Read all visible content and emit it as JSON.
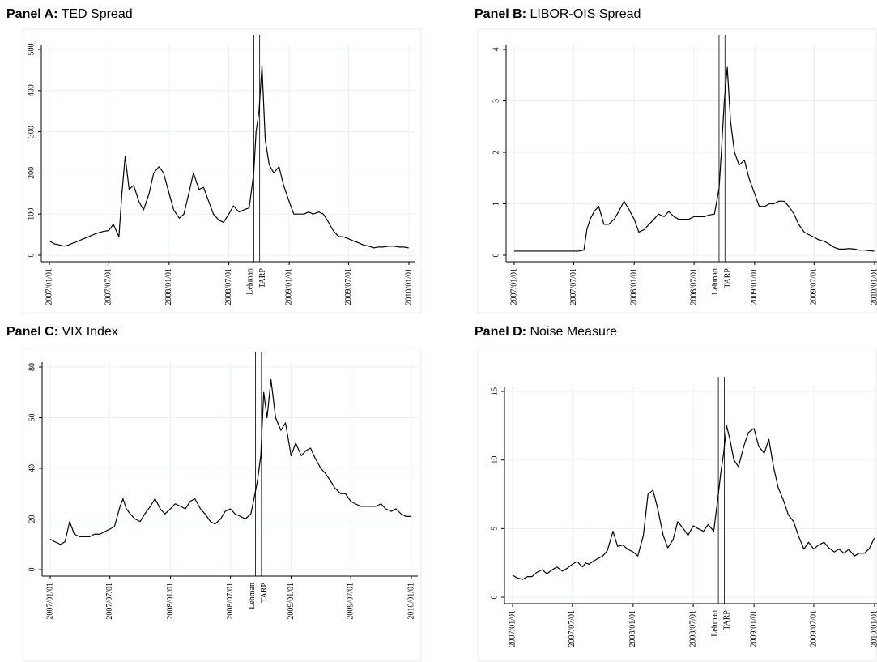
{
  "chart_data": [
    {
      "type": "line",
      "panel": "Panel A:",
      "title": "TED Spread",
      "color": "#000000",
      "grid": true,
      "xlim": [
        "2007/01/01",
        "2010/01/01"
      ],
      "ylim": [
        0,
        500
      ],
      "yticks": [
        0,
        100,
        200,
        300,
        400,
        500
      ],
      "xticks": [
        "2007/01/01",
        "2007/07/01",
        "2008/01/01",
        "2008/07/01",
        "2009/01/01",
        "2009/07/01",
        "2010/01/01"
      ],
      "vlines": [
        {
          "x": "2008/09/15",
          "label": "Lehman"
        },
        {
          "x": "2008/10/03",
          "label": "TARP"
        }
      ],
      "x": [
        "2007/01/01",
        "2007/01/15",
        "2007/02/01",
        "2007/02/15",
        "2007/03/01",
        "2007/03/15",
        "2007/04/01",
        "2007/04/15",
        "2007/05/01",
        "2007/05/15",
        "2007/06/01",
        "2007/06/15",
        "2007/07/01",
        "2007/07/15",
        "2007/08/01",
        "2007/08/10",
        "2007/08/20",
        "2007/09/01",
        "2007/09/15",
        "2007/10/01",
        "2007/10/15",
        "2007/11/01",
        "2007/11/15",
        "2007/12/01",
        "2007/12/15",
        "2008/01/01",
        "2008/01/15",
        "2008/02/01",
        "2008/02/15",
        "2008/03/01",
        "2008/03/15",
        "2008/04/01",
        "2008/04/15",
        "2008/05/01",
        "2008/05/15",
        "2008/06/01",
        "2008/06/15",
        "2008/07/01",
        "2008/07/15",
        "2008/08/01",
        "2008/08/15",
        "2008/09/01",
        "2008/09/15",
        "2008/09/22",
        "2008/10/01",
        "2008/10/10",
        "2008/10/20",
        "2008/11/01",
        "2008/11/15",
        "2008/12/01",
        "2008/12/15",
        "2009/01/01",
        "2009/01/15",
        "2009/02/01",
        "2009/02/15",
        "2009/03/01",
        "2009/03/15",
        "2009/04/01",
        "2009/04/15",
        "2009/05/01",
        "2009/05/15",
        "2009/06/01",
        "2009/06/15",
        "2009/07/01",
        "2009/07/15",
        "2009/08/01",
        "2009/08/15",
        "2009/09/01",
        "2009/09/15",
        "2009/10/01",
        "2009/10/15",
        "2009/11/01",
        "2009/11/15",
        "2009/12/01",
        "2009/12/15",
        "2009/12/31"
      ],
      "values": [
        35,
        28,
        25,
        22,
        25,
        30,
        35,
        40,
        45,
        50,
        55,
        58,
        60,
        75,
        45,
        150,
        240,
        160,
        170,
        130,
        110,
        150,
        200,
        215,
        200,
        150,
        110,
        90,
        100,
        150,
        200,
        160,
        165,
        130,
        100,
        85,
        80,
        100,
        120,
        105,
        110,
        115,
        200,
        300,
        350,
        460,
        280,
        220,
        200,
        215,
        170,
        130,
        100,
        100,
        100,
        105,
        100,
        105,
        100,
        80,
        60,
        45,
        45,
        40,
        35,
        30,
        25,
        22,
        18,
        20,
        20,
        22,
        22,
        20,
        20,
        18
      ]
    },
    {
      "type": "line",
      "panel": "Panel B:",
      "title": "LIBOR-OIS Spread",
      "color": "#000000",
      "grid": true,
      "xlim": [
        "2007/01/01",
        "2010/01/01"
      ],
      "ylim": [
        0,
        4
      ],
      "yticks": [
        0,
        1,
        2,
        3,
        4
      ],
      "xticks": [
        "2007/01/01",
        "2007/07/01",
        "2008/01/01",
        "2008/07/01",
        "2009/01/01",
        "2009/07/01",
        "2010/01/01"
      ],
      "vlines": [
        {
          "x": "2008/09/15",
          "label": "Lehman"
        },
        {
          "x": "2008/10/03",
          "label": "TARP"
        }
      ],
      "x": [
        "2007/01/01",
        "2007/01/15",
        "2007/02/01",
        "2007/02/15",
        "2007/03/01",
        "2007/03/15",
        "2007/04/01",
        "2007/04/15",
        "2007/05/01",
        "2007/05/15",
        "2007/06/01",
        "2007/06/15",
        "2007/07/01",
        "2007/07/15",
        "2007/08/01",
        "2007/08/10",
        "2007/08/20",
        "2007/09/01",
        "2007/09/15",
        "2007/10/01",
        "2007/10/15",
        "2007/11/01",
        "2007/11/15",
        "2007/12/01",
        "2007/12/15",
        "2008/01/01",
        "2008/01/15",
        "2008/02/01",
        "2008/02/15",
        "2008/03/01",
        "2008/03/15",
        "2008/04/01",
        "2008/04/15",
        "2008/05/01",
        "2008/05/15",
        "2008/06/01",
        "2008/06/15",
        "2008/07/01",
        "2008/07/15",
        "2008/08/01",
        "2008/08/15",
        "2008/09/01",
        "2008/09/15",
        "2008/09/22",
        "2008/10/01",
        "2008/10/10",
        "2008/10/20",
        "2008/11/01",
        "2008/11/15",
        "2008/12/01",
        "2008/12/15",
        "2009/01/01",
        "2009/01/15",
        "2009/02/01",
        "2009/02/15",
        "2009/03/01",
        "2009/03/15",
        "2009/04/01",
        "2009/04/15",
        "2009/05/01",
        "2009/05/15",
        "2009/06/01",
        "2009/06/15",
        "2009/07/01",
        "2009/07/15",
        "2009/08/01",
        "2009/08/15",
        "2009/09/01",
        "2009/09/15",
        "2009/10/01",
        "2009/10/15",
        "2009/11/01",
        "2009/11/15",
        "2009/12/01",
        "2009/12/15",
        "2009/12/31"
      ],
      "values": [
        0.08,
        0.08,
        0.08,
        0.08,
        0.08,
        0.08,
        0.08,
        0.08,
        0.08,
        0.08,
        0.08,
        0.08,
        0.08,
        0.08,
        0.1,
        0.5,
        0.7,
        0.85,
        0.95,
        0.6,
        0.6,
        0.7,
        0.85,
        1.05,
        0.9,
        0.7,
        0.45,
        0.5,
        0.6,
        0.7,
        0.8,
        0.75,
        0.85,
        0.75,
        0.7,
        0.7,
        0.7,
        0.75,
        0.75,
        0.75,
        0.78,
        0.8,
        1.3,
        2.0,
        3.0,
        3.65,
        2.6,
        2.0,
        1.75,
        1.85,
        1.5,
        1.2,
        0.95,
        0.95,
        1.0,
        1.0,
        1.05,
        1.05,
        0.95,
        0.8,
        0.6,
        0.45,
        0.4,
        0.35,
        0.3,
        0.27,
        0.22,
        0.15,
        0.12,
        0.12,
        0.13,
        0.12,
        0.1,
        0.1,
        0.09,
        0.08
      ]
    },
    {
      "type": "line",
      "panel": "Panel C:",
      "title": "VIX Index",
      "color": "#000000",
      "grid": true,
      "xlim": [
        "2007/01/01",
        "2010/01/01"
      ],
      "ylim": [
        0,
        80
      ],
      "yticks": [
        0,
        20,
        40,
        60,
        80
      ],
      "xticks": [
        "2007/01/01",
        "2007/07/01",
        "2008/01/01",
        "2008/07/01",
        "2009/01/01",
        "2009/07/01",
        "2010/01/01"
      ],
      "vlines": [
        {
          "x": "2008/09/15",
          "label": "Lehman"
        },
        {
          "x": "2008/10/03",
          "label": "TARP"
        }
      ],
      "x": [
        "2007/01/01",
        "2007/01/15",
        "2007/02/01",
        "2007/02/15",
        "2007/03/01",
        "2007/03/15",
        "2007/04/01",
        "2007/04/15",
        "2007/05/01",
        "2007/05/15",
        "2007/06/01",
        "2007/06/15",
        "2007/07/01",
        "2007/07/15",
        "2007/08/01",
        "2007/08/10",
        "2007/08/20",
        "2007/09/01",
        "2007/09/15",
        "2007/10/01",
        "2007/10/15",
        "2007/11/01",
        "2007/11/15",
        "2007/12/01",
        "2007/12/15",
        "2008/01/01",
        "2008/01/15",
        "2008/02/01",
        "2008/02/15",
        "2008/03/01",
        "2008/03/15",
        "2008/04/01",
        "2008/04/15",
        "2008/05/01",
        "2008/05/15",
        "2008/06/01",
        "2008/06/15",
        "2008/07/01",
        "2008/07/15",
        "2008/08/01",
        "2008/08/15",
        "2008/09/01",
        "2008/09/15",
        "2008/09/22",
        "2008/10/01",
        "2008/10/10",
        "2008/10/20",
        "2008/11/01",
        "2008/11/15",
        "2008/12/01",
        "2008/12/15",
        "2009/01/01",
        "2009/01/15",
        "2009/02/01",
        "2009/02/15",
        "2009/03/01",
        "2009/03/15",
        "2009/04/01",
        "2009/04/15",
        "2009/05/01",
        "2009/05/15",
        "2009/06/01",
        "2009/06/15",
        "2009/07/01",
        "2009/07/15",
        "2009/08/01",
        "2009/08/15",
        "2009/09/01",
        "2009/09/15",
        "2009/10/01",
        "2009/10/15",
        "2009/11/01",
        "2009/11/15",
        "2009/12/01",
        "2009/12/15",
        "2009/12/31"
      ],
      "values": [
        12,
        11,
        10,
        11,
        19,
        14,
        13,
        13,
        13,
        14,
        14,
        15,
        16,
        17,
        25,
        28,
        24,
        22,
        20,
        19,
        22,
        25,
        28,
        24,
        22,
        24,
        26,
        25,
        24,
        27,
        28,
        24,
        22,
        19,
        18,
        20,
        23,
        24,
        22,
        21,
        20,
        22,
        31,
        36,
        45,
        70,
        60,
        75,
        60,
        55,
        58,
        45,
        50,
        45,
        47,
        48,
        44,
        40,
        38,
        35,
        32,
        30,
        30,
        27,
        26,
        25,
        25,
        25,
        25,
        26,
        24,
        23,
        24,
        22,
        21,
        21
      ]
    },
    {
      "type": "line",
      "panel": "Panel D:",
      "title": "Noise Measure",
      "color": "#000000",
      "grid": true,
      "xlim": [
        "2007/01/01",
        "2010/01/01"
      ],
      "ylim": [
        0,
        15
      ],
      "yticks": [
        0,
        5,
        10,
        15
      ],
      "xticks": [
        "2007/01/01",
        "2007/07/01",
        "2008/01/01",
        "2008/07/01",
        "2009/01/01",
        "2009/07/01",
        "2010/01/01"
      ],
      "vlines": [
        {
          "x": "2008/09/15",
          "label": "Lehman"
        },
        {
          "x": "2008/10/03",
          "label": "TARP"
        }
      ],
      "x": [
        "2007/01/01",
        "2007/01/15",
        "2007/02/01",
        "2007/02/15",
        "2007/03/01",
        "2007/03/15",
        "2007/04/01",
        "2007/04/15",
        "2007/05/01",
        "2007/05/15",
        "2007/06/01",
        "2007/06/15",
        "2007/07/01",
        "2007/07/15",
        "2007/08/01",
        "2007/08/10",
        "2007/08/20",
        "2007/09/01",
        "2007/09/15",
        "2007/10/01",
        "2007/10/15",
        "2007/11/01",
        "2007/11/15",
        "2007/12/01",
        "2007/12/15",
        "2008/01/01",
        "2008/01/15",
        "2008/02/01",
        "2008/02/15",
        "2008/03/01",
        "2008/03/15",
        "2008/04/01",
        "2008/04/15",
        "2008/05/01",
        "2008/05/15",
        "2008/06/01",
        "2008/06/15",
        "2008/07/01",
        "2008/07/15",
        "2008/08/01",
        "2008/08/15",
        "2008/09/01",
        "2008/09/15",
        "2008/09/22",
        "2008/10/01",
        "2008/10/10",
        "2008/10/20",
        "2008/11/01",
        "2008/11/15",
        "2008/12/01",
        "2008/12/15",
        "2009/01/01",
        "2009/01/15",
        "2009/02/01",
        "2009/02/15",
        "2009/03/01",
        "2009/03/15",
        "2009/04/01",
        "2009/04/15",
        "2009/05/01",
        "2009/05/15",
        "2009/06/01",
        "2009/06/15",
        "2009/07/01",
        "2009/07/15",
        "2009/08/01",
        "2009/08/15",
        "2009/09/01",
        "2009/09/15",
        "2009/10/01",
        "2009/10/15",
        "2009/11/01",
        "2009/11/15",
        "2009/12/01",
        "2009/12/15",
        "2009/12/31"
      ],
      "values": [
        1.6,
        1.4,
        1.3,
        1.5,
        1.5,
        1.8,
        2.0,
        1.7,
        2.0,
        2.2,
        1.9,
        2.1,
        2.4,
        2.6,
        2.2,
        2.5,
        2.4,
        2.6,
        2.8,
        3.0,
        3.4,
        4.8,
        3.7,
        3.8,
        3.5,
        3.3,
        3.0,
        4.5,
        7.5,
        7.8,
        6.5,
        4.5,
        3.6,
        4.2,
        5.5,
        5.0,
        4.5,
        5.2,
        5.0,
        4.8,
        5.3,
        4.8,
        7.5,
        9.0,
        10.5,
        12.5,
        11.5,
        10.0,
        9.5,
        11.0,
        12.0,
        12.3,
        11.0,
        10.5,
        11.5,
        9.5,
        8.0,
        7.0,
        6.0,
        5.5,
        4.5,
        3.5,
        4.0,
        3.5,
        3.8,
        4.0,
        3.6,
        3.3,
        3.5,
        3.2,
        3.5,
        3.0,
        3.2,
        3.2,
        3.5,
        4.3
      ]
    }
  ]
}
